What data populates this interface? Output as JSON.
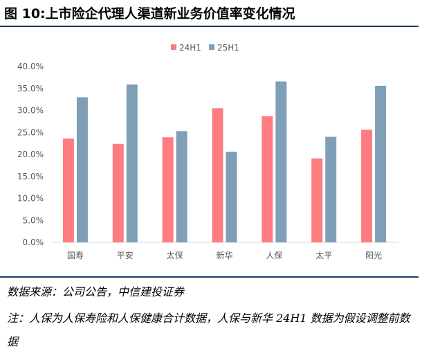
{
  "figure": {
    "title": "图 10:上市险企代理人渠道新业务价值率变化情况",
    "source": "数据来源：公司公告，中信建投证券",
    "note": "注：人保为人保寿险和人保健康合计数据，人保与新华 24H1 数据为假设调整前数据"
  },
  "colors": {
    "series_24h1": "#ff7c80",
    "series_25h1": "#7f9fb7",
    "axis": "#d9d9d9",
    "text": "#595959"
  },
  "chart_data": {
    "type": "bar",
    "title": "",
    "xlabel": "",
    "ylabel": "",
    "categories": [
      "国寿",
      "平安",
      "太保",
      "新华",
      "人保",
      "太平",
      "阳光"
    ],
    "series": [
      {
        "name": "24H1",
        "values": [
          23.6,
          22.4,
          23.9,
          30.5,
          28.7,
          19.1,
          25.6
        ]
      },
      {
        "name": "25H1",
        "values": [
          33.0,
          35.9,
          25.3,
          20.6,
          36.6,
          24.0,
          35.6
        ]
      }
    ],
    "ylim": [
      0,
      40
    ],
    "yticks": [
      "0.0%",
      "5.0%",
      "10.0%",
      "15.0%",
      "20.0%",
      "25.0%",
      "30.0%",
      "35.0%",
      "40.0%"
    ],
    "grid": false,
    "legend": "top-center"
  }
}
